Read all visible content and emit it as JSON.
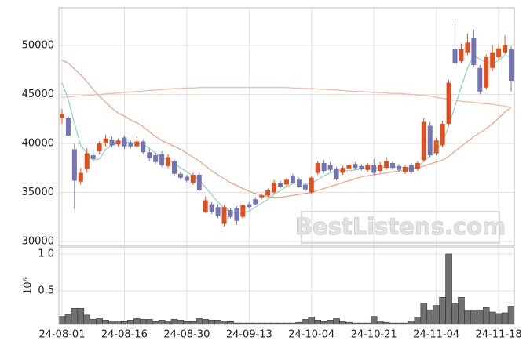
{
  "chart_data": [
    {
      "type": "candlestick",
      "watermark": "BestListens.com",
      "ylim": [
        29520,
        53840
      ],
      "yticks": [
        30000,
        35000,
        40000,
        45000,
        50000
      ],
      "grid": true,
      "up_color": "#e0501e",
      "down_color": "#7474b4",
      "open": [
        42600,
        42600,
        39400,
        36100,
        37400,
        38800,
        39200,
        40000,
        40400,
        39900,
        40600,
        40000,
        39700,
        40200,
        39100,
        38800,
        38900,
        37700,
        38200,
        36900,
        36600,
        36000,
        36800,
        33000,
        33800,
        33500,
        31800,
        33200,
        33400,
        32500,
        33800,
        34300,
        34500,
        34700,
        35000,
        36000,
        35800,
        36700,
        36300,
        35800,
        35000,
        37000,
        38000,
        37800,
        37400,
        37000,
        37400,
        37900,
        37700,
        37300,
        37800,
        37200,
        37500,
        38000,
        37700,
        37100,
        37800,
        37400,
        38300,
        41800,
        39000,
        39800,
        42000,
        49600,
        48400,
        49300,
        50800,
        47700,
        45700,
        47700,
        48800,
        49300,
        49600
      ],
      "high": [
        43500,
        42800,
        40000,
        37500,
        39500,
        39300,
        40200,
        40900,
        40700,
        40500,
        40800,
        40300,
        40700,
        40400,
        39400,
        39100,
        39200,
        38900,
        38400,
        37100,
        36800,
        37000,
        37000,
        34600,
        34000,
        33800,
        33700,
        33400,
        33600,
        33900,
        34000,
        34500,
        34900,
        35400,
        36300,
        36200,
        36500,
        36900,
        36500,
        36000,
        36700,
        38200,
        38300,
        38100,
        37600,
        37700,
        38000,
        38100,
        37900,
        38000,
        38400,
        38100,
        38600,
        38200,
        37900,
        37800,
        38000,
        38200,
        42600,
        42200,
        40600,
        42300,
        46500,
        52500,
        50200,
        51200,
        51600,
        48000,
        49100,
        50000,
        50200,
        51000,
        49900
      ],
      "low": [
        42000,
        40700,
        33300,
        35800,
        37000,
        38100,
        38900,
        39700,
        39600,
        39700,
        39400,
        39500,
        39500,
        38900,
        38200,
        37900,
        37600,
        37500,
        36700,
        36300,
        36000,
        35800,
        35000,
        32900,
        32800,
        32400,
        31500,
        32300,
        31700,
        32300,
        33300,
        33700,
        34300,
        34500,
        34800,
        35400,
        35600,
        35900,
        35500,
        35100,
        34800,
        36800,
        37000,
        37100,
        36200,
        36800,
        37200,
        37300,
        37200,
        37100,
        36800,
        37000,
        37300,
        37300,
        37100,
        36900,
        36900,
        37200,
        38100,
        38600,
        38800,
        39600,
        41800,
        48000,
        48200,
        49000,
        47800,
        45000,
        45500,
        47400,
        48500,
        49100,
        45300
      ],
      "close": [
        43000,
        40800,
        36200,
        37000,
        39000,
        38400,
        40000,
        40500,
        39800,
        40300,
        39700,
        39700,
        40200,
        39100,
        38500,
        38100,
        37800,
        38600,
        36900,
        36500,
        36200,
        36800,
        35200,
        34200,
        33000,
        32600,
        33500,
        32500,
        32100,
        33700,
        33500,
        33800,
        34700,
        35200,
        36000,
        35600,
        36300,
        36000,
        35600,
        35300,
        36500,
        38000,
        37200,
        37300,
        36400,
        37500,
        37800,
        37500,
        37400,
        37800,
        37000,
        37800,
        38200,
        37500,
        37300,
        37600,
        37100,
        38000,
        42200,
        38800,
        40300,
        42000,
        46200,
        48200,
        49600,
        50300,
        48000,
        45300,
        48800,
        49300,
        49700,
        50000,
        46400
      ],
      "lines": [
        {
          "color": "#8fd8c4",
          "values": [
            46200,
            44500,
            42000,
            39800,
            39000,
            38300,
            38400,
            39400,
            39800,
            40100,
            40200,
            40100,
            40000,
            39900,
            39500,
            39000,
            38600,
            38300,
            38000,
            37500,
            37100,
            36700,
            36300,
            35500,
            34800,
            34000,
            33400,
            33000,
            32800,
            32900,
            33100,
            33500,
            33900,
            34300,
            34800,
            35200,
            35600,
            35900,
            36000,
            35900,
            35900,
            36300,
            36700,
            37000,
            37200,
            37300,
            37200,
            37300,
            37400,
            37500,
            37500,
            37500,
            37600,
            37600,
            37600,
            37500,
            37500,
            37600,
            38200,
            38700,
            39300,
            40100,
            41800,
            43800,
            45800,
            47700,
            49000,
            48600,
            48300,
            48100,
            48500,
            49000,
            48800
          ]
        },
        {
          "color": "#eea583",
          "values": [
            48500,
            48200,
            47600,
            47000,
            46300,
            45500,
            44800,
            44200,
            43600,
            43100,
            42800,
            42400,
            42100,
            41700,
            41200,
            40700,
            40300,
            40000,
            39700,
            39400,
            39000,
            38600,
            38200,
            37700,
            37200,
            36800,
            36400,
            36000,
            35700,
            35400,
            35100,
            34900,
            34700,
            34600,
            34500,
            34500,
            34600,
            34700,
            34800,
            34900,
            35000,
            35200,
            35400,
            35600,
            35800,
            36000,
            36200,
            36400,
            36600,
            36700,
            36800,
            36900,
            37000,
            37100,
            37200,
            37300,
            37400,
            37500,
            37700,
            37900,
            38100,
            38300,
            38700,
            39200,
            39700,
            40200,
            40700,
            41100,
            41500,
            42000,
            42600,
            43200,
            43700
          ]
        },
        {
          "color": "#f2b9a0",
          "values": [
            44700,
            44750,
            44800,
            44850,
            44900,
            44950,
            45000,
            45050,
            45100,
            45150,
            45200,
            45250,
            45300,
            45350,
            45400,
            45450,
            45500,
            45550,
            45600,
            45600,
            45650,
            45650,
            45700,
            45700,
            45700,
            45700,
            45700,
            45700,
            45700,
            45700,
            45700,
            45700,
            45700,
            45700,
            45700,
            45700,
            45700,
            45650,
            45650,
            45600,
            45600,
            45550,
            45500,
            45500,
            45450,
            45400,
            45350,
            45300,
            45300,
            45250,
            45200,
            45200,
            45150,
            45100,
            45100,
            45050,
            45000,
            44950,
            44900,
            44850,
            44700,
            44600,
            44500,
            44400,
            44300,
            44250,
            44200,
            44100,
            44050,
            44000,
            43900,
            43800,
            43700
          ]
        }
      ]
    },
    {
      "type": "bar",
      "yscale_label": "10⁶",
      "ylim": [
        40000,
        1085000
      ],
      "yticks": [
        {
          "value": 500000,
          "label": "0.5"
        },
        {
          "value": 1000000,
          "label": "1.0"
        }
      ],
      "grid": true,
      "color": "#707070",
      "categories": [
        "24-08-01",
        null,
        null,
        null,
        null,
        null,
        null,
        null,
        null,
        null,
        "24-08-16",
        null,
        null,
        null,
        null,
        null,
        null,
        null,
        null,
        null,
        "24-08-30",
        null,
        null,
        null,
        null,
        null,
        null,
        null,
        null,
        null,
        "24-09-13",
        null,
        null,
        null,
        null,
        null,
        null,
        null,
        null,
        null,
        "24-10-04",
        null,
        null,
        null,
        null,
        null,
        null,
        null,
        null,
        null,
        "24-10-21",
        null,
        null,
        null,
        null,
        null,
        null,
        null,
        null,
        null,
        "24-11-04",
        null,
        null,
        null,
        null,
        null,
        null,
        null,
        null,
        null,
        "24-11-18",
        null,
        null
      ],
      "values": [
        150000,
        180000,
        260000,
        260000,
        170000,
        110000,
        120000,
        100000,
        90000,
        90000,
        80000,
        100000,
        120000,
        110000,
        110000,
        80000,
        100000,
        90000,
        110000,
        100000,
        80000,
        80000,
        120000,
        110000,
        100000,
        100000,
        90000,
        80000,
        60000,
        60000,
        60000,
        60000,
        60000,
        60000,
        60000,
        60000,
        60000,
        60000,
        70000,
        110000,
        140000,
        100000,
        80000,
        100000,
        120000,
        80000,
        70000,
        60000,
        60000,
        60000,
        150000,
        90000,
        70000,
        60000,
        60000,
        60000,
        90000,
        140000,
        330000,
        240000,
        300000,
        410000,
        1000000,
        330000,
        410000,
        240000,
        240000,
        240000,
        270000,
        210000,
        190000,
        200000,
        280000
      ]
    }
  ]
}
